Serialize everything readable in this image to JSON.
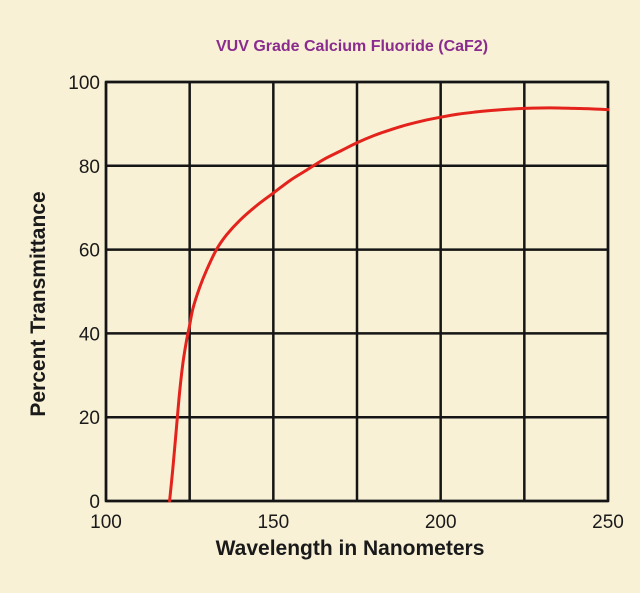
{
  "chart_data": {
    "type": "line",
    "title": "VUV Grade Calcium Fluoride (CaF2)",
    "xlabel": "Wavelength in Nanometers",
    "ylabel": "Percent Transmittance",
    "xlim": [
      100,
      250
    ],
    "ylim": [
      0,
      100
    ],
    "x_ticks": [
      "100",
      "150",
      "200",
      "250"
    ],
    "y_ticks": [
      "0",
      "20",
      "40",
      "60",
      "80",
      "100"
    ],
    "grid": true,
    "legend": "none",
    "series": [
      {
        "color": "#e3231c",
        "x": [
          119,
          120,
          121,
          122,
          123,
          124,
          125,
          126,
          128,
          130,
          133,
          136,
          140,
          145,
          150,
          155,
          160,
          165,
          170,
          175,
          180,
          185,
          190,
          195,
          200,
          205,
          210,
          215,
          220,
          225,
          230,
          235,
          240,
          245,
          250
        ],
        "y": [
          0,
          8,
          17,
          26,
          33,
          38,
          42,
          46,
          51,
          55,
          60,
          63.5,
          67,
          70.5,
          73.5,
          76.5,
          79,
          81.5,
          83.5,
          85.5,
          87.2,
          88.6,
          89.8,
          90.8,
          91.6,
          92.3,
          92.8,
          93.2,
          93.5,
          93.7,
          93.8,
          93.8,
          93.7,
          93.6,
          93.4
        ]
      }
    ]
  },
  "colors": {
    "background": "#f8f1d6",
    "title": "#8a2b8e",
    "grid": "#151515",
    "curve": "#e3231c",
    "text": "#1a1a1a"
  }
}
